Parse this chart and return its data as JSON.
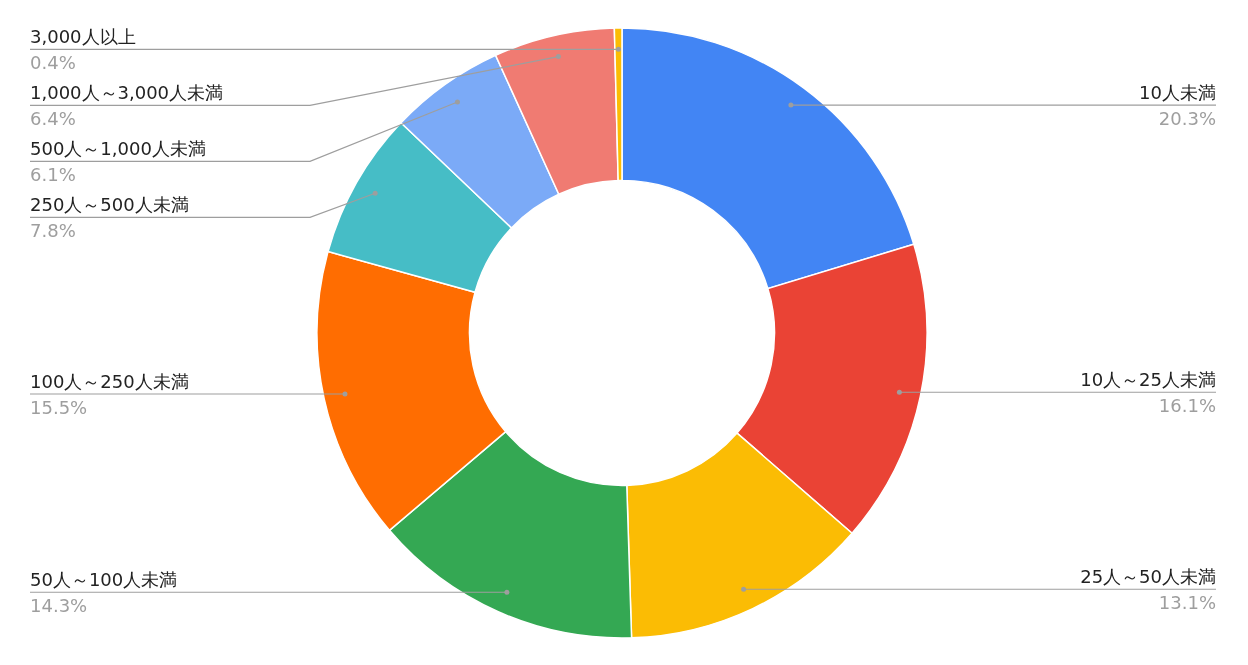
{
  "chart_data": {
    "type": "donut",
    "categories": [
      "10人未満",
      "10人～25人未満",
      "25人～50人未満",
      "50人～100人未満",
      "100人～250人未満",
      "250人～500人未満",
      "500人～1,000人未満",
      "1,000人～3,000人未満",
      "3,000人以上"
    ],
    "values": [
      20.3,
      16.1,
      13.1,
      14.3,
      15.5,
      7.8,
      6.1,
      6.4,
      0.4
    ],
    "colors": [
      "#4285f4",
      "#ea4335",
      "#fbbc04",
      "#34a853",
      "#ff6d01",
      "#46bdc6",
      "#7baaf7",
      "#f07b72",
      "#fbbc04"
    ],
    "value_labels": [
      "20.3%",
      "16.1%",
      "13.1%",
      "14.3%",
      "15.5%",
      "7.8%",
      "6.1%",
      "6.4%",
      "0.4%"
    ]
  }
}
